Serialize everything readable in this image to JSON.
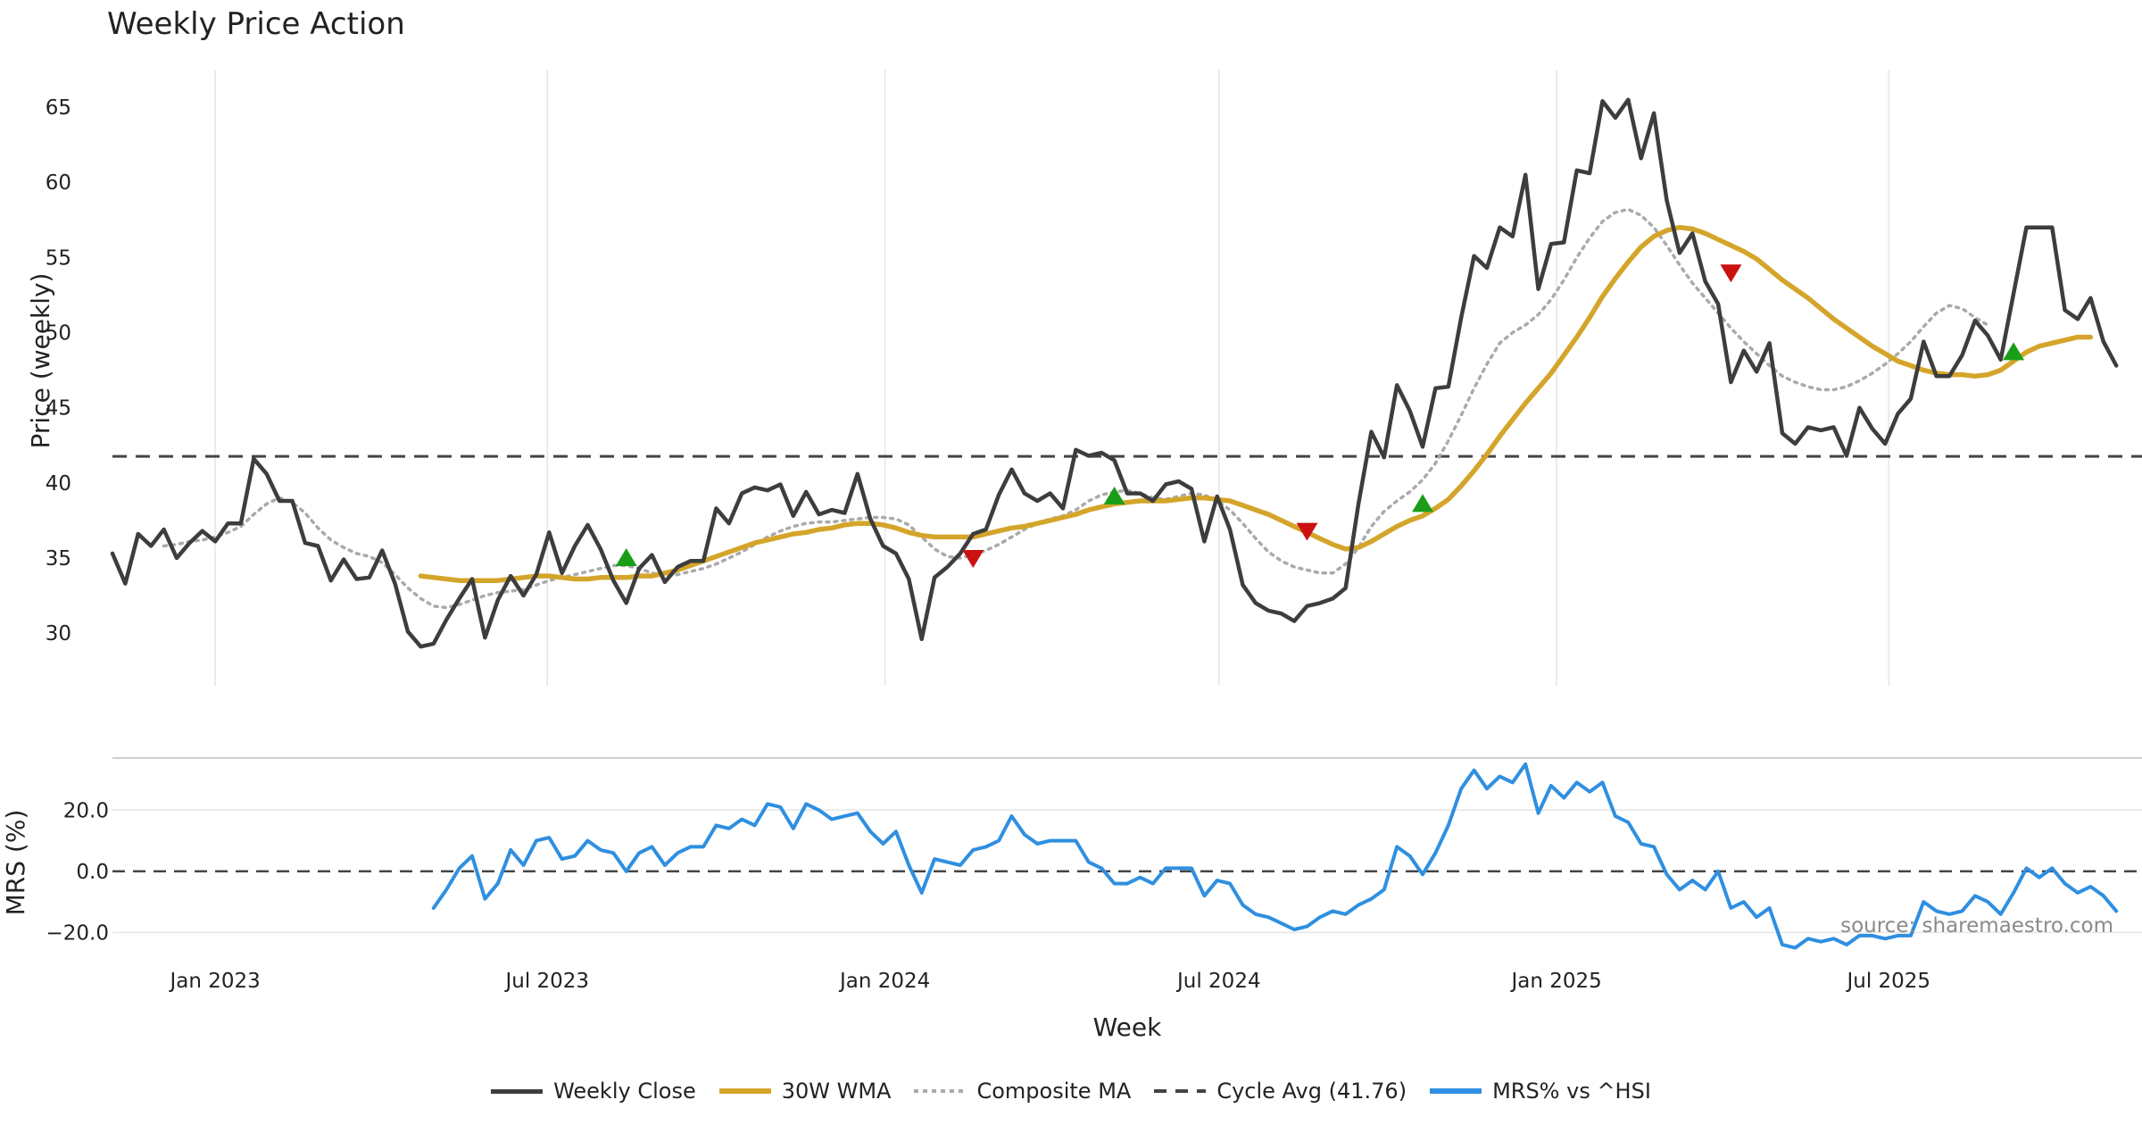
{
  "chart_data": {
    "type": "line",
    "title": "Weekly Price Action",
    "source_note": "source: sharemaestro.com",
    "xlabel": "Week",
    "x_tick_labels": [
      "Jan 2023",
      "Jul 2023",
      "Jan 2024",
      "Jul 2024",
      "Jan 2025",
      "Jul 2025"
    ],
    "x_tick_dates": [
      "2023-01-01",
      "2023-07-01",
      "2024-01-01",
      "2024-07-01",
      "2025-01-01",
      "2025-07-01"
    ],
    "x_range": [
      "2022-11-06",
      "2025-11-16"
    ],
    "legend_placement": "bottom-center",
    "colors": {
      "close": "#3d3d3d",
      "wma": "#d4a52a",
      "composite": "#aaaaaa",
      "cycle": "#444444",
      "mrs": "#2f8fe0",
      "buy": "#1a9e1a",
      "sell": "#cc1111",
      "grid": "#e6e6e6"
    },
    "panels": [
      {
        "id": "price",
        "ylabel": "Price (weekly)",
        "ylim": [
          26.5,
          67.5
        ],
        "yticks": [
          30,
          35,
          40,
          45,
          50,
          55,
          60,
          65
        ],
        "ytick_labels": [
          "30",
          "35",
          "40",
          "45",
          "50",
          "55",
          "60",
          "65"
        ],
        "series": [
          {
            "name": "Weekly Close",
            "key": "close",
            "style": "solid",
            "start": "2022-11-06",
            "step_weeks": 1,
            "values": [
              35.3,
              33.3,
              36.6,
              35.8,
              36.9,
              35.0,
              36.0,
              36.8,
              36.1,
              37.3,
              37.3,
              41.6,
              40.6,
              38.8,
              38.8,
              36.0,
              35.8,
              33.5,
              34.9,
              33.6,
              33.7,
              35.5,
              33.3,
              30.1,
              29.1,
              29.3,
              30.9,
              32.3,
              33.6,
              29.7,
              32.2,
              33.8,
              32.5,
              33.9,
              36.7,
              34.0,
              35.8,
              37.2,
              35.6,
              33.5,
              32.0,
              34.3,
              35.2,
              33.4,
              34.4,
              34.8,
              34.8,
              38.3,
              37.3,
              39.3,
              39.7,
              39.5,
              39.9,
              37.8,
              39.4,
              37.9,
              38.2,
              38.0,
              40.6,
              37.6,
              35.8,
              35.3,
              33.6,
              29.6,
              33.7,
              34.4,
              35.3,
              36.6,
              36.9,
              39.2,
              40.9,
              39.3,
              38.8,
              39.3,
              38.3,
              42.2,
              41.8,
              42.0,
              41.5,
              39.3,
              39.3,
              38.8,
              39.9,
              40.1,
              39.6,
              36.1,
              39.1,
              36.9,
              33.2,
              32.0,
              31.5,
              31.3,
              30.8,
              31.8,
              32.0,
              32.3,
              33.0,
              38.6,
              43.4,
              41.7,
              46.5,
              44.8,
              42.4,
              46.3,
              46.4,
              51.0,
              55.1,
              54.3,
              57.0,
              56.4,
              60.5,
              52.9,
              55.9,
              56.0,
              60.8,
              60.6,
              65.4,
              64.3,
              65.5,
              61.6,
              64.6,
              58.8,
              55.3,
              56.6,
              53.4,
              51.9,
              46.7,
              48.8,
              47.4,
              49.3,
              43.3,
              42.6,
              43.7,
              43.5,
              43.7,
              41.8,
              45.0,
              43.6,
              42.6,
              44.6,
              45.6,
              49.4,
              47.1,
              47.1,
              48.5,
              50.8,
              49.8,
              48.2,
              52.6,
              57.0,
              57.0,
              57.0,
              51.5,
              50.9,
              52.3,
              49.4,
              47.8
            ]
          },
          {
            "name": "30W WMA",
            "key": "wma",
            "style": "solid",
            "start": "2023-04-23",
            "step_weeks": 1,
            "values": [
              33.8,
              33.7,
              33.6,
              33.5,
              33.5,
              33.5,
              33.5,
              33.6,
              33.7,
              33.8,
              33.8,
              33.7,
              33.6,
              33.6,
              33.7,
              33.7,
              33.7,
              33.8,
              33.8,
              34.0,
              34.2,
              34.5,
              34.8,
              35.1,
              35.4,
              35.7,
              36.0,
              36.2,
              36.4,
              36.6,
              36.7,
              36.9,
              37.0,
              37.2,
              37.3,
              37.3,
              37.2,
              37.0,
              36.7,
              36.5,
              36.4,
              36.4,
              36.4,
              36.4,
              36.6,
              36.8,
              37.0,
              37.1,
              37.3,
              37.5,
              37.7,
              37.9,
              38.2,
              38.4,
              38.6,
              38.7,
              38.8,
              38.8,
              38.8,
              38.9,
              39.0,
              39.0,
              38.9,
              38.8,
              38.5,
              38.2,
              37.9,
              37.5,
              37.1,
              36.7,
              36.3,
              35.9,
              35.6,
              35.7,
              36.1,
              36.6,
              37.1,
              37.5,
              37.8,
              38.3,
              38.9,
              39.8,
              40.8,
              41.9,
              43.1,
              44.2,
              45.3,
              46.3,
              47.3,
              48.5,
              49.7,
              51.0,
              52.4,
              53.6,
              54.7,
              55.7,
              56.4,
              56.8,
              57.0,
              56.9,
              56.6,
              56.2,
              55.8,
              55.4,
              54.9,
              54.2,
              53.5,
              52.9,
              52.3,
              51.6,
              50.9,
              50.3,
              49.7,
              49.1,
              48.6,
              48.1,
              47.8,
              47.5,
              47.3,
              47.2,
              47.2,
              47.1,
              47.2,
              47.5,
              48.1,
              48.7,
              49.1,
              49.3,
              49.5,
              49.7,
              49.7
            ]
          },
          {
            "name": "Composite MA",
            "key": "composite",
            "style": "dotted",
            "start": "2022-12-04",
            "step_weeks": 1,
            "values": [
              35.8,
              35.9,
              36.1,
              36.2,
              36.4,
              36.7,
              37.1,
              37.9,
              38.6,
              39.0,
              38.7,
              38.0,
              37.0,
              36.2,
              35.7,
              35.3,
              35.1,
              34.7,
              33.9,
              33.0,
              32.3,
              31.8,
              31.7,
              31.9,
              32.2,
              32.5,
              32.7,
              32.8,
              32.9,
              33.2,
              33.5,
              33.7,
              33.9,
              34.1,
              34.3,
              34.5,
              34.5,
              34.3,
              34.0,
              33.8,
              33.9,
              34.1,
              34.3,
              34.6,
              35.0,
              35.4,
              35.9,
              36.4,
              36.8,
              37.1,
              37.3,
              37.4,
              37.4,
              37.5,
              37.6,
              37.7,
              37.7,
              37.6,
              37.2,
              36.4,
              35.6,
              35.1,
              35.0,
              35.2,
              35.5,
              35.9,
              36.4,
              36.9,
              37.3,
              37.6,
              37.8,
              38.2,
              38.8,
              39.2,
              39.4,
              39.5,
              39.3,
              39.0,
              38.9,
              39.1,
              39.3,
              39.2,
              38.8,
              38.2,
              37.3,
              36.3,
              35.4,
              34.8,
              34.4,
              34.2,
              34.0,
              34.0,
              34.6,
              35.7,
              37.1,
              38.1,
              38.8,
              39.4,
              40.2,
              41.3,
              42.8,
              44.5,
              46.3,
              47.9,
              49.3,
              50.0,
              50.5,
              51.2,
              52.2,
              53.5,
              55.0,
              56.3,
              57.4,
              58.0,
              58.2,
              57.8,
              57.0,
              55.8,
              54.5,
              53.3,
              52.3,
              51.3,
              50.3,
              49.4,
              48.6,
              47.8,
              47.1,
              46.7,
              46.4,
              46.2,
              46.2,
              46.4,
              46.8,
              47.3,
              47.9,
              48.6,
              49.4,
              50.4,
              51.3,
              51.8,
              51.6,
              51.0,
              50.5
            ]
          },
          {
            "name": "Cycle Avg (41.76)",
            "key": "cycle",
            "style": "dashed",
            "constant": 41.76
          }
        ],
        "markers": [
          {
            "signal": "buy",
            "date": "2023-08-13",
            "value": 35.0
          },
          {
            "signal": "buy",
            "date": "2024-05-05",
            "value": 39.1
          },
          {
            "signal": "buy",
            "date": "2024-10-20",
            "value": 38.6
          },
          {
            "signal": "buy",
            "date": "2025-09-07",
            "value": 48.7
          },
          {
            "signal": "sell",
            "date": "2024-02-18",
            "value": 35.0
          },
          {
            "signal": "sell",
            "date": "2024-08-18",
            "value": 36.8
          },
          {
            "signal": "sell",
            "date": "2025-04-06",
            "value": 54.0
          }
        ]
      },
      {
        "id": "mrs",
        "ylabel": "MRS (%)",
        "ylim": [
          -26,
          37
        ],
        "yticks": [
          20,
          0,
          -20
        ],
        "ytick_labels": [
          "20.0",
          "0.0",
          "−20.0"
        ],
        "zero_line": 0,
        "series": [
          {
            "name": "MRS% vs ^HSI",
            "key": "mrs",
            "style": "solid",
            "start": "2023-04-30",
            "step_weeks": 1,
            "values": [
              -12,
              -6,
              1,
              5,
              -9,
              -4,
              7,
              2,
              10,
              11,
              4,
              5,
              10,
              7,
              6,
              0,
              6,
              8,
              2,
              6,
              8,
              8,
              15,
              14,
              17,
              15,
              22,
              21,
              14,
              22,
              20,
              17,
              18,
              19,
              13,
              9,
              13,
              2,
              -7,
              4,
              3,
              2,
              7,
              8,
              10,
              18,
              12,
              9,
              10,
              10,
              10,
              3,
              1,
              -4,
              -4,
              -2,
              -4,
              1,
              1,
              1,
              -8,
              -3,
              -4,
              -11,
              -14,
              -15,
              -17,
              -19,
              -18,
              -15,
              -13,
              -14,
              -11,
              -9,
              -6,
              8,
              5,
              -1,
              6,
              15,
              27,
              33,
              27,
              31,
              29,
              35,
              19,
              28,
              24,
              29,
              26,
              29,
              18,
              16,
              9,
              8,
              -1,
              -6,
              -3,
              -6,
              0,
              -12,
              -10,
              -15,
              -12,
              -24,
              -25,
              -22,
              -23,
              -22,
              -24,
              -21,
              -21,
              -22,
              -21,
              -21,
              -10,
              -13,
              -14,
              -13,
              -8,
              -10,
              -14,
              -7,
              1,
              -2,
              1,
              -4,
              -7,
              -5,
              -8,
              -13
            ]
          }
        ]
      }
    ]
  }
}
